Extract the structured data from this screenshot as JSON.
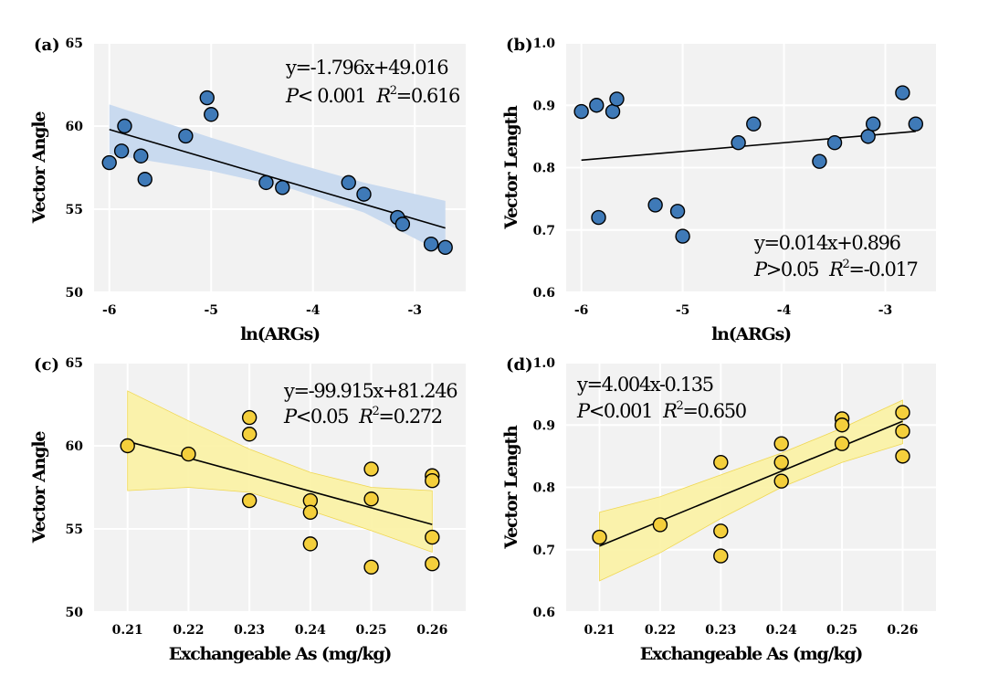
{
  "chart_data": [
    {
      "panel_label": "(a)",
      "type": "scatter",
      "xlabel": "ln(ARGs)",
      "ylabel": "Vector Angle",
      "xlim": [
        -6.15,
        -2.5
      ],
      "ylim": [
        50,
        65
      ],
      "xticks": [
        "-6",
        "-5",
        "-4",
        "-3"
      ],
      "yticks": [
        "50",
        "55",
        "60",
        "65"
      ],
      "xtick_values": [
        -6,
        -5,
        -4,
        -3
      ],
      "ytick_values": [
        50,
        55,
        60,
        65
      ],
      "points": [
        {
          "x": -6.0,
          "y": 57.8
        },
        {
          "x": -5.88,
          "y": 58.5
        },
        {
          "x": -5.85,
          "y": 60.0
        },
        {
          "x": -5.69,
          "y": 58.2
        },
        {
          "x": -5.65,
          "y": 56.8
        },
        {
          "x": -5.25,
          "y": 59.4
        },
        {
          "x": -5.04,
          "y": 61.7
        },
        {
          "x": -5.0,
          "y": 60.7
        },
        {
          "x": -4.46,
          "y": 56.6
        },
        {
          "x": -4.3,
          "y": 56.3
        },
        {
          "x": -3.65,
          "y": 56.6
        },
        {
          "x": -3.5,
          "y": 55.9
        },
        {
          "x": -3.17,
          "y": 54.5
        },
        {
          "x": -3.12,
          "y": 54.1
        },
        {
          "x": -2.84,
          "y": 52.9
        },
        {
          "x": -2.7,
          "y": 52.7
        }
      ],
      "fit": {
        "slope": -1.796,
        "intercept": 49.016,
        "x_range": [
          -6.0,
          -2.7
        ]
      },
      "band": {
        "lower": [
          [
            -6.0,
            58.3
          ],
          [
            -5.0,
            57.3
          ],
          [
            -4.2,
            56.2
          ],
          [
            -3.5,
            54.8
          ],
          [
            -2.7,
            52.3
          ]
        ],
        "upper": [
          [
            -6.0,
            61.3
          ],
          [
            -5.0,
            59.3
          ],
          [
            -4.2,
            57.8
          ],
          [
            -3.5,
            56.6
          ],
          [
            -2.7,
            55.5
          ]
        ]
      },
      "equation": "y=-1.796x+49.016",
      "p_text": "< 0.001",
      "r2_text": "=0.616",
      "point_color": "#3f7ab8",
      "band_color": "#c6d8ee"
    },
    {
      "panel_label": "(b)",
      "type": "scatter",
      "xlabel": "ln(ARGs)",
      "ylabel": "Vector Length",
      "xlim": [
        -6.15,
        -2.5
      ],
      "ylim": [
        0.6,
        1.0
      ],
      "xticks": [
        "-6",
        "-5",
        "-4",
        "-3"
      ],
      "yticks": [
        "0.6",
        "0.7",
        "0.8",
        "0.9",
        "1.0"
      ],
      "xtick_values": [
        -6,
        -5,
        -4,
        -3
      ],
      "ytick_values": [
        0.6,
        0.7,
        0.8,
        0.9,
        1.0
      ],
      "points": [
        {
          "x": -6.0,
          "y": 0.89
        },
        {
          "x": -5.85,
          "y": 0.9
        },
        {
          "x": -5.69,
          "y": 0.89
        },
        {
          "x": -5.65,
          "y": 0.91
        },
        {
          "x": -5.83,
          "y": 0.72
        },
        {
          "x": -5.27,
          "y": 0.74
        },
        {
          "x": -5.05,
          "y": 0.73
        },
        {
          "x": -5.0,
          "y": 0.69
        },
        {
          "x": -4.45,
          "y": 0.84
        },
        {
          "x": -4.3,
          "y": 0.87
        },
        {
          "x": -3.65,
          "y": 0.81
        },
        {
          "x": -3.5,
          "y": 0.84
        },
        {
          "x": -3.17,
          "y": 0.85
        },
        {
          "x": -3.12,
          "y": 0.87
        },
        {
          "x": -2.83,
          "y": 0.92
        },
        {
          "x": -2.7,
          "y": 0.87
        }
      ],
      "fit": {
        "slope": 0.014,
        "intercept": 0.896,
        "x_range": [
          -6.0,
          -2.7
        ]
      },
      "band": null,
      "equation": "y=0.014x+0.896",
      "p_text": ">0.05",
      "r2_text": "=-0.017",
      "point_color": "#3f7ab8",
      "band_color": ""
    },
    {
      "panel_label": "(c)",
      "type": "scatter",
      "xlabel": "Exchangeable As (mg/kg)",
      "ylabel": "Vector Angle",
      "xlim": [
        0.2045,
        0.2655
      ],
      "ylim": [
        50,
        65
      ],
      "xticks": [
        "0.21",
        "0.22",
        "0.23",
        "0.24",
        "0.25",
        "0.26"
      ],
      "yticks": [
        "50",
        "55",
        "60",
        "65"
      ],
      "xtick_values": [
        0.21,
        0.22,
        0.23,
        0.24,
        0.25,
        0.26
      ],
      "ytick_values": [
        50,
        55,
        60,
        65
      ],
      "points": [
        {
          "x": 0.21,
          "y": 60.0
        },
        {
          "x": 0.22,
          "y": 59.5
        },
        {
          "x": 0.23,
          "y": 61.7
        },
        {
          "x": 0.23,
          "y": 60.7
        },
        {
          "x": 0.23,
          "y": 56.7
        },
        {
          "x": 0.24,
          "y": 56.7
        },
        {
          "x": 0.24,
          "y": 56.0
        },
        {
          "x": 0.24,
          "y": 54.1
        },
        {
          "x": 0.25,
          "y": 58.6
        },
        {
          "x": 0.25,
          "y": 56.8
        },
        {
          "x": 0.25,
          "y": 52.7
        },
        {
          "x": 0.26,
          "y": 58.2
        },
        {
          "x": 0.26,
          "y": 57.9
        },
        {
          "x": 0.26,
          "y": 54.5
        },
        {
          "x": 0.26,
          "y": 52.9
        }
      ],
      "fit": {
        "slope": -99.915,
        "intercept": 81.246,
        "x_range": [
          0.21,
          0.26
        ]
      },
      "band": {
        "lower": [
          [
            0.21,
            57.3
          ],
          [
            0.22,
            57.5
          ],
          [
            0.23,
            57.2
          ],
          [
            0.24,
            56.1
          ],
          [
            0.25,
            54.9
          ],
          [
            0.26,
            53.6
          ]
        ],
        "upper": [
          [
            0.21,
            63.3
          ],
          [
            0.22,
            61.5
          ],
          [
            0.23,
            59.8
          ],
          [
            0.24,
            58.4
          ],
          [
            0.25,
            57.5
          ],
          [
            0.26,
            57.3
          ]
        ]
      },
      "equation": "y=-99.915x+81.246",
      "p_text": "<0.05",
      "r2_text": "=0.272",
      "point_color": "#f4cf3c",
      "band_color": "#fbf3a8"
    },
    {
      "panel_label": "(d)",
      "type": "scatter",
      "xlabel": "Exchangeable As (mg/kg)",
      "ylabel": "Vector Length",
      "xlim": [
        0.2045,
        0.2655
      ],
      "ylim": [
        0.6,
        1.0
      ],
      "xticks": [
        "0.21",
        "0.22",
        "0.23",
        "0.24",
        "0.25",
        "0.26"
      ],
      "yticks": [
        "0.6",
        "0.7",
        "0.8",
        "0.9",
        "1.0"
      ],
      "xtick_values": [
        0.21,
        0.22,
        0.23,
        0.24,
        0.25,
        0.26
      ],
      "ytick_values": [
        0.6,
        0.7,
        0.8,
        0.9,
        1.0
      ],
      "points": [
        {
          "x": 0.21,
          "y": 0.72
        },
        {
          "x": 0.22,
          "y": 0.74
        },
        {
          "x": 0.23,
          "y": 0.84
        },
        {
          "x": 0.23,
          "y": 0.73
        },
        {
          "x": 0.23,
          "y": 0.69
        },
        {
          "x": 0.24,
          "y": 0.87
        },
        {
          "x": 0.24,
          "y": 0.84
        },
        {
          "x": 0.24,
          "y": 0.81
        },
        {
          "x": 0.25,
          "y": 0.91
        },
        {
          "x": 0.25,
          "y": 0.9
        },
        {
          "x": 0.25,
          "y": 0.87
        },
        {
          "x": 0.26,
          "y": 0.92
        },
        {
          "x": 0.26,
          "y": 0.89
        },
        {
          "x": 0.26,
          "y": 0.85
        }
      ],
      "fit": {
        "slope": 4.004,
        "intercept": -0.135,
        "x_range": [
          0.21,
          0.26
        ]
      },
      "band": {
        "lower": [
          [
            0.21,
            0.65
          ],
          [
            0.22,
            0.695
          ],
          [
            0.23,
            0.75
          ],
          [
            0.24,
            0.8
          ],
          [
            0.25,
            0.84
          ],
          [
            0.26,
            0.87
          ]
        ],
        "upper": [
          [
            0.21,
            0.76
          ],
          [
            0.22,
            0.785
          ],
          [
            0.23,
            0.82
          ],
          [
            0.24,
            0.855
          ],
          [
            0.25,
            0.895
          ],
          [
            0.26,
            0.94
          ]
        ]
      },
      "equation": "y=4.004x-0.135",
      "p_text": "<0.001",
      "r2_text": "=0.650",
      "point_color": "#f4cf3c",
      "band_color": "#fbf3a8"
    }
  ],
  "stat_labels": {
    "p": "P",
    "r": "R",
    "r_sup": "2"
  },
  "style": {
    "panel_bg": "#f2f2f2",
    "grid_color": "#ffffff",
    "line_color": "#000000",
    "point_edge": "#000000"
  }
}
